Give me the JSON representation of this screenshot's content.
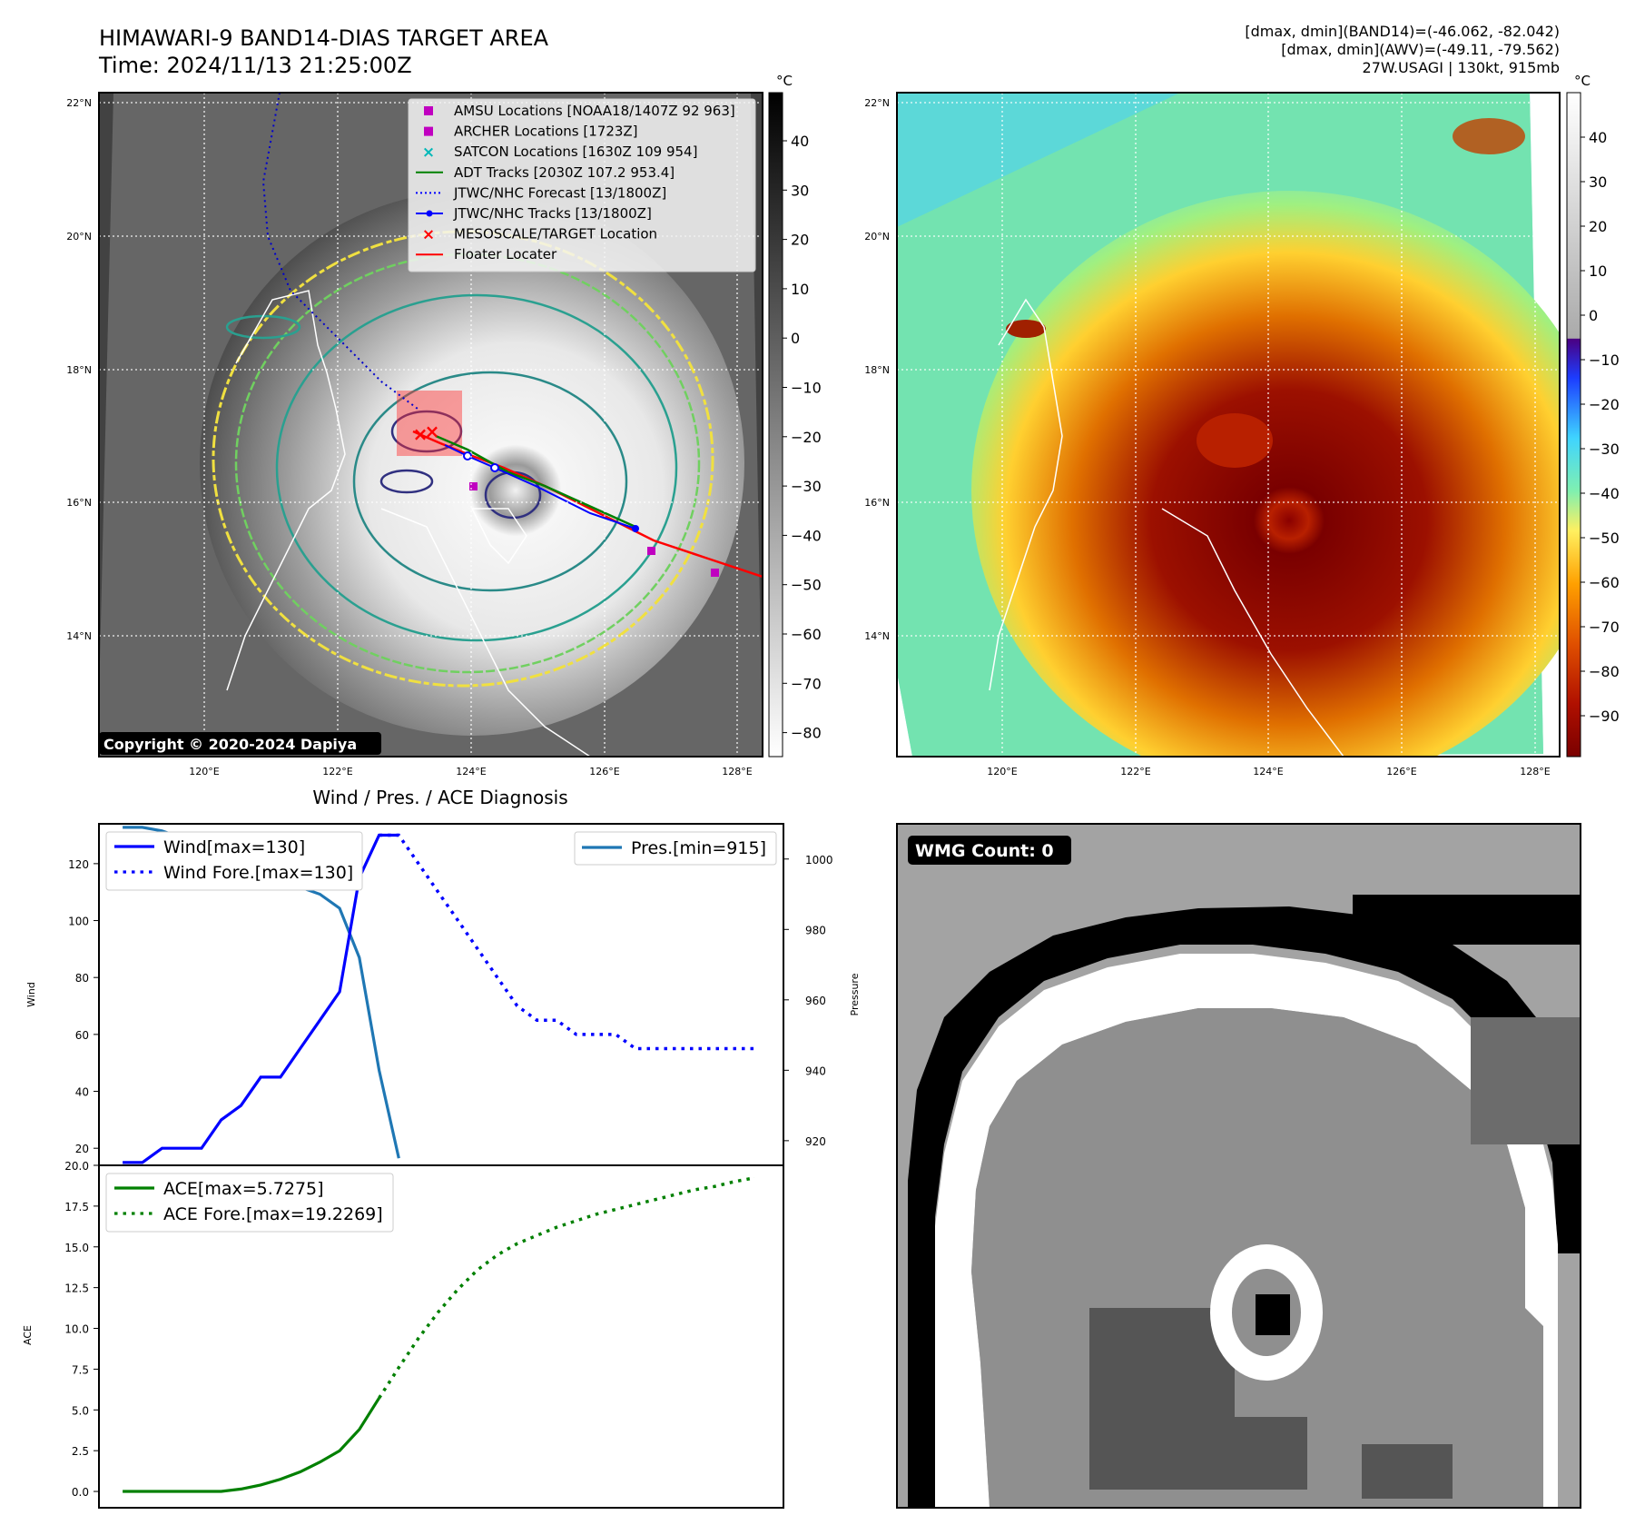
{
  "header": {
    "title_line1": "HIMAWARI-9 BAND14-DIAS TARGET AREA",
    "title_line2": "Time: 2024/11/13 21:25:00Z",
    "info_line1": "[dmax, dmin](BAND14)=(-46.062, -82.042)",
    "info_line2": "[dmax, dmin](AWV)=(-49.11, -79.562)",
    "info_line3": "27W.USAGI | 130kt, 915mb"
  },
  "map": {
    "lat_labels": [
      "22°N",
      "20°N",
      "18°N",
      "16°N",
      "14°N"
    ],
    "lon_labels": [
      "120°E",
      "122°E",
      "124°E",
      "126°E",
      "128°E"
    ],
    "copyright": "Copyright © 2020-2024 Dapiya",
    "legend": [
      {
        "label": "AMSU Locations [NOAA18/1407Z 92 963]",
        "color": "#c000c0",
        "marker": "square"
      },
      {
        "label": "ARCHER Locations [1723Z]",
        "color": "#c000c0",
        "marker": "square"
      },
      {
        "label": "SATCON Locations [1630Z 109 954]",
        "color": "#00b8b8",
        "marker": "x"
      },
      {
        "label": "ADT Tracks [2030Z 107.2 953.4]",
        "color": "#008000",
        "marker": "line"
      },
      {
        "label": "JTWC/NHC Forecast [13/1800Z]",
        "color": "#0000ff",
        "marker": "dotted"
      },
      {
        "label": "JTWC/NHC Tracks [13/1800Z]",
        "color": "#0000ff",
        "marker": "line-dot"
      },
      {
        "label": "MESOSCALE/TARGET Location",
        "color": "#ff0000",
        "marker": "x"
      },
      {
        "label": "Floater Locater",
        "color": "#ff0000",
        "marker": "line"
      }
    ],
    "unit": "°C",
    "cbar1_ticks": [
      "40",
      "30",
      "20",
      "10",
      "0",
      "−10",
      "−20",
      "−30",
      "−40",
      "−50",
      "−60",
      "−70",
      "−80"
    ],
    "cbar2_ticks": [
      "40",
      "30",
      "20",
      "10",
      "0",
      "−10",
      "−20",
      "−30",
      "−40",
      "−50",
      "−60",
      "−70",
      "−80",
      "−90"
    ]
  },
  "chart_data": [
    {
      "type": "line",
      "title": "Wind / Pres. / ACE Diagnosis",
      "ylabel": "Wind",
      "y2label": "Pressure",
      "ylim": [
        14,
        134
      ],
      "y2lim": [
        913,
        1010
      ],
      "yticks": [
        "20",
        "40",
        "60",
        "80",
        "100",
        "120"
      ],
      "y2ticks": [
        "920",
        "940",
        "960",
        "980",
        "1000"
      ],
      "legend_left": [
        "Wind[max=130]",
        "Wind Fore.[max=130]"
      ],
      "legend_right": [
        "Pres.[min=915]"
      ],
      "series": [
        {
          "name": "Wind",
          "style": "solid",
          "color": "#0000ff",
          "x": [
            0,
            1,
            2,
            3,
            4,
            5,
            6,
            7,
            8,
            9,
            10,
            11,
            12,
            13,
            14
          ],
          "values": [
            15,
            15,
            20,
            20,
            20,
            30,
            35,
            45,
            45,
            55,
            65,
            75,
            115,
            130,
            130
          ]
        },
        {
          "name": "Wind Fore.",
          "style": "dotted",
          "color": "#0000ff",
          "x": [
            13,
            14,
            15,
            16,
            17,
            18,
            19,
            20,
            21,
            22,
            23,
            24,
            25,
            26,
            27,
            28,
            29,
            30,
            31,
            32
          ],
          "values": [
            130,
            130,
            120,
            110,
            100,
            90,
            80,
            70,
            65,
            65,
            60,
            60,
            60,
            55,
            55,
            55,
            55,
            55,
            55,
            55
          ]
        },
        {
          "name": "Pres.",
          "style": "solid",
          "color": "#1f77b4",
          "x": [
            0,
            1,
            2,
            3,
            4,
            5,
            6,
            7,
            8,
            9,
            10,
            11,
            12,
            13,
            14
          ],
          "values": [
            1009,
            1009,
            1008,
            1006,
            1005,
            1000,
            997,
            993,
            993,
            992,
            990,
            986,
            972,
            940,
            915
          ]
        }
      ]
    },
    {
      "type": "line",
      "ylabel": "ACE",
      "ylim": [
        -1,
        20
      ],
      "yticks": [
        "0.0",
        "2.5",
        "5.0",
        "7.5",
        "10.0",
        "12.5",
        "15.0",
        "17.5",
        "20.0"
      ],
      "legend": [
        "ACE[max=5.7275]",
        "ACE Fore.[max=19.2269]"
      ],
      "series": [
        {
          "name": "ACE",
          "style": "solid",
          "color": "#008000",
          "x": [
            0,
            1,
            2,
            3,
            4,
            5,
            6,
            7,
            8,
            9,
            10,
            11,
            12,
            13
          ],
          "values": [
            0,
            0,
            0,
            0,
            0,
            0,
            0.15,
            0.4,
            0.75,
            1.2,
            1.8,
            2.5,
            3.8,
            5.7275
          ]
        },
        {
          "name": "ACE Fore.",
          "style": "dotted",
          "color": "#008000",
          "x": [
            13,
            14,
            15,
            16,
            17,
            18,
            19,
            20,
            21,
            22,
            23,
            24,
            25,
            26,
            27,
            28,
            29,
            30,
            31,
            32
          ],
          "values": [
            5.7275,
            7.6,
            9.4,
            11,
            12.4,
            13.6,
            14.5,
            15.2,
            15.7,
            16.2,
            16.6,
            17.0,
            17.3,
            17.6,
            17.9,
            18.2,
            18.5,
            18.7,
            19.0,
            19.2269
          ]
        }
      ]
    }
  ],
  "wmg": {
    "label": "WMG Count: 0"
  }
}
